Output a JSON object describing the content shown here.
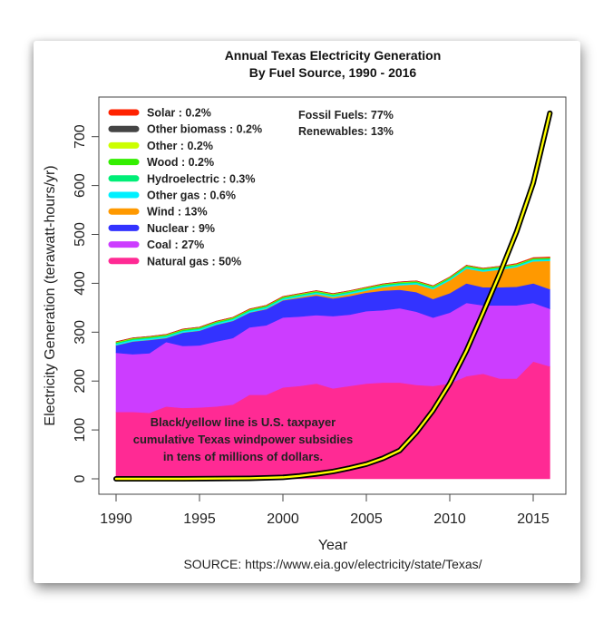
{
  "chart_data": {
    "type": "area",
    "title": "Annual Texas Electricity Generation",
    "subtitle": "By Fuel Source, 1990 - 2016",
    "xlabel": "Year",
    "ylabel": "Electricity Generation (terawatt-hours/yr)",
    "source": "SOURCE: https://www.eia.gov/electricity/state/Texas/",
    "xlim": [
      1989,
      2017
    ],
    "ylim": [
      -10,
      780
    ],
    "x_ticks": [
      1990,
      1995,
      2000,
      2005,
      2010,
      2015
    ],
    "y_ticks": [
      0,
      100,
      200,
      300,
      400,
      500,
      600,
      700
    ],
    "grid": false,
    "legend_position": "top-left",
    "x": [
      1990,
      1991,
      1992,
      1993,
      1994,
      1995,
      1996,
      1997,
      1998,
      1999,
      2000,
      2001,
      2002,
      2003,
      2004,
      2005,
      2006,
      2007,
      2008,
      2009,
      2010,
      2011,
      2012,
      2013,
      2014,
      2015,
      2016
    ],
    "series": [
      {
        "name": "Natural gas",
        "share": "50%",
        "color": "#ff2a94",
        "values": [
          137,
          137,
          135,
          148,
          145,
          146,
          148,
          152,
          172,
          172,
          187,
          190,
          195,
          185,
          190,
          195,
          197,
          197,
          192,
          190,
          195,
          210,
          215,
          205,
          205,
          240,
          230
        ]
      },
      {
        "name": "Coal",
        "share": "27%",
        "color": "#cc3dff",
        "values": [
          121,
          118,
          122,
          132,
          127,
          127,
          133,
          136,
          138,
          142,
          143,
          142,
          140,
          148,
          146,
          148,
          148,
          152,
          150,
          140,
          145,
          150,
          140,
          150,
          150,
          120,
          118
        ]
      },
      {
        "name": "Nuclear",
        "share": "9%",
        "color": "#3333ff",
        "values": [
          15,
          26,
          27,
          8,
          27,
          30,
          34,
          35,
          30,
          33,
          35,
          38,
          40,
          36,
          38,
          38,
          40,
          38,
          40,
          38,
          40,
          40,
          37,
          37,
          38,
          40,
          40
        ]
      },
      {
        "name": "Wind",
        "share": "13%",
        "color": "#ff9900",
        "values": [
          0.5,
          0.5,
          0.5,
          0.5,
          0.5,
          0.5,
          0.5,
          0.5,
          0.5,
          1,
          1,
          2,
          3,
          3,
          4,
          4,
          7,
          9,
          16,
          20,
          26,
          30,
          32,
          36,
          40,
          45,
          58
        ]
      },
      {
        "name": "Other gas",
        "share": "0.6%",
        "color": "#00f0ff",
        "values": [
          3,
          3,
          3,
          3,
          3,
          3,
          3,
          3,
          3,
          3,
          3,
          3,
          3,
          3,
          3,
          3,
          3,
          3,
          3,
          3,
          3,
          3,
          3,
          3,
          3,
          3,
          3
        ]
      },
      {
        "name": "Hydroelectric",
        "share": "0.3%",
        "color": "#00ee77",
        "values": [
          1.5,
          1.5,
          1.5,
          1.5,
          1.5,
          1.5,
          1.5,
          1.5,
          1.5,
          1.5,
          1.5,
          1.5,
          1.5,
          1.5,
          1.5,
          1.5,
          1.5,
          1.5,
          1.5,
          1.5,
          1.5,
          1.5,
          1.5,
          1.5,
          1.5,
          1.5,
          1.5
        ]
      },
      {
        "name": "Wood",
        "share": "0.2%",
        "color": "#33ee00",
        "values": [
          1,
          1,
          1,
          1,
          1,
          1,
          1,
          1,
          1,
          1,
          1,
          1,
          1,
          1,
          1,
          1,
          1,
          1,
          1,
          1,
          1,
          1,
          1,
          1,
          1,
          1,
          1
        ]
      },
      {
        "name": "Other",
        "share": "0.2%",
        "color": "#ccff00",
        "values": [
          1,
          1,
          1,
          1,
          1,
          1,
          1,
          1,
          1,
          1,
          1,
          1,
          1,
          1,
          1,
          1,
          1,
          1,
          1,
          1,
          1,
          1,
          1,
          1,
          1,
          1,
          1
        ]
      },
      {
        "name": "Other biomass",
        "share": "0.2%",
        "color": "#444444",
        "values": [
          0.5,
          0.5,
          0.5,
          0.5,
          0.5,
          0.5,
          0.5,
          0.5,
          0.5,
          0.5,
          0.5,
          0.5,
          0.5,
          0.5,
          0.5,
          0.5,
          0.5,
          0.5,
          0.5,
          0.5,
          0.5,
          0.5,
          0.5,
          0.5,
          0.5,
          0.5,
          0.5
        ]
      },
      {
        "name": "Solar",
        "share": "0.2%",
        "color": "#ff2200",
        "values": [
          0,
          0,
          0,
          0,
          0,
          0,
          0,
          0,
          0,
          0,
          0,
          0,
          0,
          0,
          0,
          0,
          0,
          0,
          0,
          0,
          0,
          0,
          0,
          0,
          0.5,
          0.5,
          1
        ]
      }
    ],
    "overlay_line": {
      "name": "Cumulative Texas windpower subsidies (tens of millions of dollars)",
      "color_outer": "#000000",
      "color_inner": "#ffff00",
      "x": [
        1990,
        1992,
        1994,
        1996,
        1998,
        2000,
        2001,
        2002,
        2003,
        2004,
        2005,
        2006,
        2007,
        2008,
        2009,
        2010,
        2011,
        2012,
        2013,
        2014,
        2015,
        2016
      ],
      "values": [
        0,
        0,
        0,
        0.5,
        1,
        3,
        6,
        10,
        15,
        22,
        30,
        42,
        58,
        95,
        140,
        195,
        262,
        340,
        420,
        505,
        605,
        748
      ]
    },
    "legend_order": [
      "Solar",
      "Other biomass",
      "Other",
      "Wood",
      "Hydroelectric",
      "Other gas",
      "Wind",
      "Nuclear",
      "Coal",
      "Natural gas"
    ],
    "summary": [
      "Fossil Fuels: 77%",
      "Renewables: 13%"
    ],
    "annotation": [
      "Black/yellow line is U.S. taxpayer",
      "cumulative Texas windpower subsidies",
      "in tens of millions of dollars."
    ]
  }
}
